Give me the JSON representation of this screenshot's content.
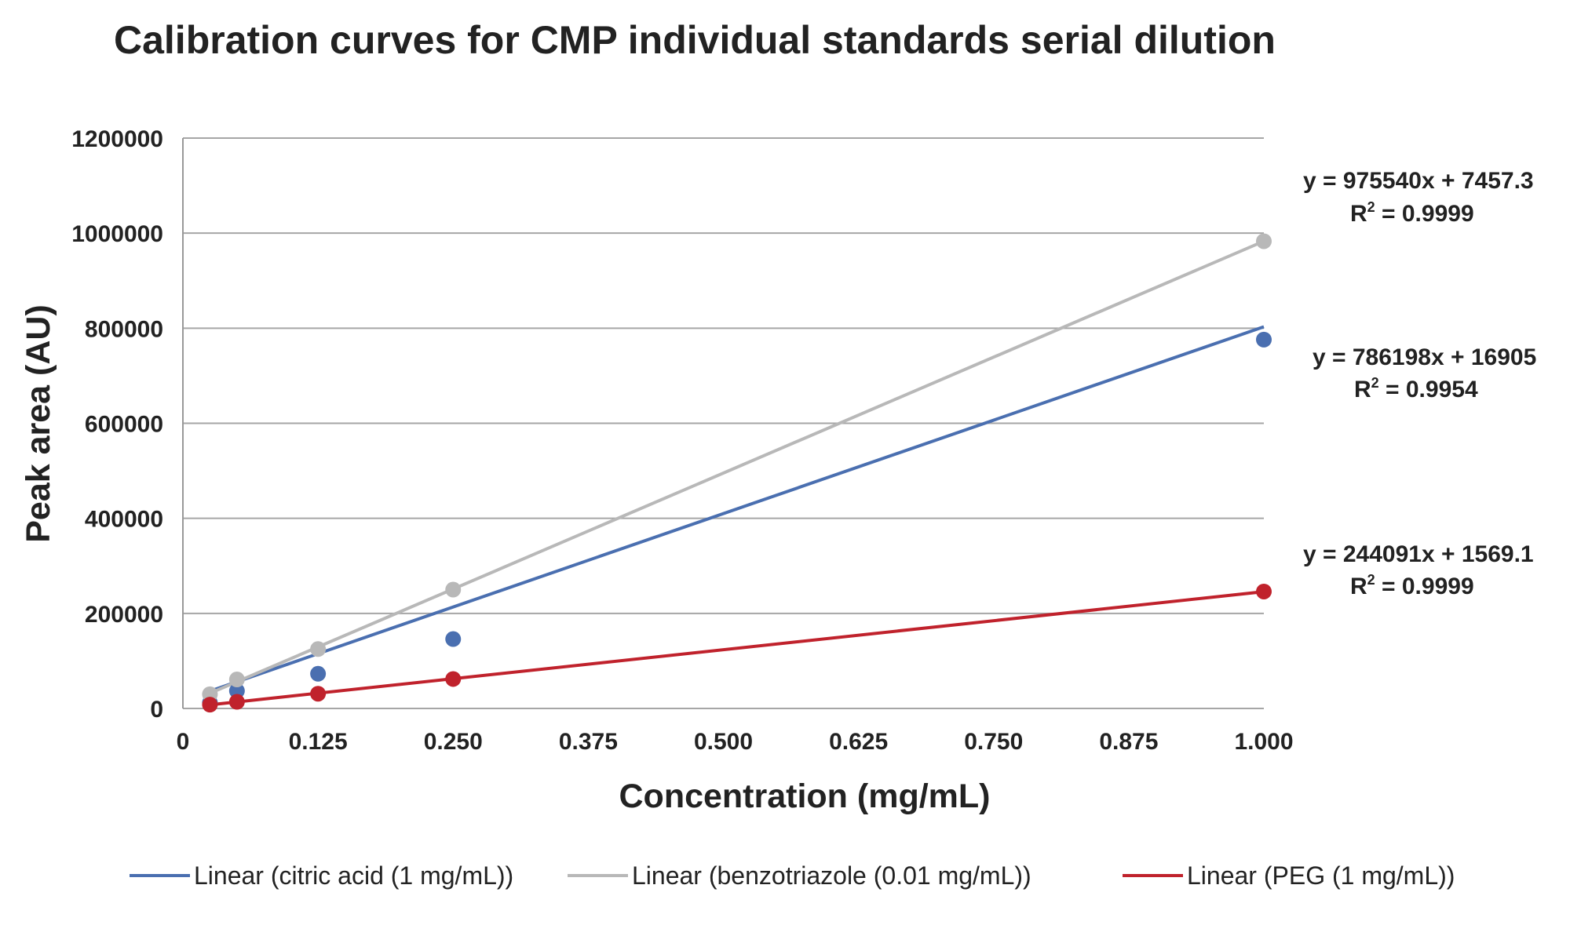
{
  "chart_data": {
    "type": "scatter",
    "title": "Calibration curves for CMP individual standards serial dilution",
    "xlabel": "Concentration (mg/mL)",
    "ylabel": "Peak area (AU)",
    "xlim": [
      0,
      1.0
    ],
    "ylim": [
      0,
      1200000
    ],
    "x_ticks": [
      "0",
      "0.125",
      "0.250",
      "0.375",
      "0.500",
      "0.625",
      "0.750",
      "0.875",
      "1.000"
    ],
    "y_ticks": [
      "0",
      "200000",
      "400000",
      "600000",
      "800000",
      "1000000",
      "1200000"
    ],
    "grid": "horizontal",
    "legend_position": "bottom",
    "series": [
      {
        "id": "citric",
        "legend": "Linear (citric acid (1 mg/mL))",
        "color": "#4a6fb0",
        "points": [
          [
            0.025,
            12000
          ],
          [
            0.05,
            37000
          ],
          [
            0.125,
            73000
          ],
          [
            0.25,
            146000
          ],
          [
            1.0,
            776000
          ]
        ],
        "fit": {
          "slope": 786198,
          "intercept": 16905
        },
        "equation": "y = 786198x + 16905",
        "r2_label": "R",
        "r2_exp": "2",
        "r2_value": " = 0.9954"
      },
      {
        "id": "benzotriazole",
        "legend": "Linear (benzotriazole (0.01 mg/mL))",
        "color": "#b8b8b8",
        "points": [
          [
            0.025,
            30000
          ],
          [
            0.05,
            61000
          ],
          [
            0.125,
            125000
          ],
          [
            0.25,
            250000
          ],
          [
            1.0,
            983000
          ]
        ],
        "fit": {
          "slope": 975540,
          "intercept": 7457.3
        },
        "equation": "y = 975540x + 7457.3",
        "r2_label": "R",
        "r2_exp": "2",
        "r2_value": " = 0.9999"
      },
      {
        "id": "peg",
        "legend": "Linear (PEG (1 mg/mL))",
        "color": "#c0222c",
        "points": [
          [
            0.025,
            8000
          ],
          [
            0.05,
            14000
          ],
          [
            0.125,
            31000
          ],
          [
            0.25,
            62000
          ],
          [
            1.0,
            246000
          ]
        ],
        "fit": {
          "slope": 244091,
          "intercept": 1569.1
        },
        "equation": "y = 244091x + 1569.1",
        "r2_label": "R",
        "r2_exp": "2",
        "r2_value": " = 0.9999"
      }
    ]
  }
}
